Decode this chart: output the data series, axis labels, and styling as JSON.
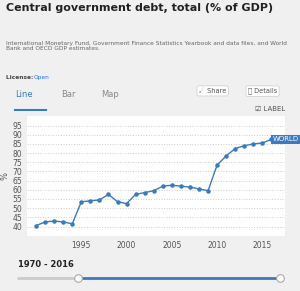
{
  "title": "Central government debt, total (% of GDP)",
  "subtitle": "International Monetary Fund, Government Finance Statistics Yearbook and data files, and World\nBank and OECD GDP estimates.",
  "license_label": "License: ",
  "license_link": "Open",
  "tab_line": "Line",
  "tab_bar": "Bar",
  "tab_map": "Map",
  "ylabel": "%",
  "ylim": [
    35,
    100
  ],
  "yticks": [
    40,
    45,
    50,
    55,
    60,
    65,
    70,
    75,
    80,
    85,
    90,
    95
  ],
  "xticks": [
    1995,
    2000,
    2005,
    2010,
    2015
  ],
  "series_label": "WORLD",
  "line_color": "#3a7abf",
  "dot_color": "#3a7abf",
  "bg_chart": "#ffffff",
  "bg_outer": "#f0f0f0",
  "years": [
    1990,
    1991,
    1992,
    1993,
    1994,
    1995,
    1996,
    1997,
    1998,
    1999,
    2000,
    2001,
    2002,
    2003,
    2004,
    2005,
    2006,
    2007,
    2008,
    2009,
    2010,
    2011,
    2012,
    2013,
    2014,
    2015,
    2016
  ],
  "values": [
    40.5,
    42.5,
    43.0,
    42.5,
    41.5,
    53.5,
    54.0,
    54.5,
    57.5,
    53.5,
    52.5,
    57.5,
    58.5,
    59.5,
    62.0,
    62.5,
    62.0,
    61.5,
    60.5,
    59.5,
    73.5,
    78.5,
    82.5,
    84.0,
    85.0,
    85.5,
    87.5
  ],
  "footer_range": "1970 - 2016",
  "slider_color": "#3a7abf",
  "grid_color": "#cccccc",
  "label_box_color": "#3a7abf",
  "label_text_color": "#ffffff",
  "tab_active_color": "#3a7abf",
  "tab_inactive_color": "#888888"
}
